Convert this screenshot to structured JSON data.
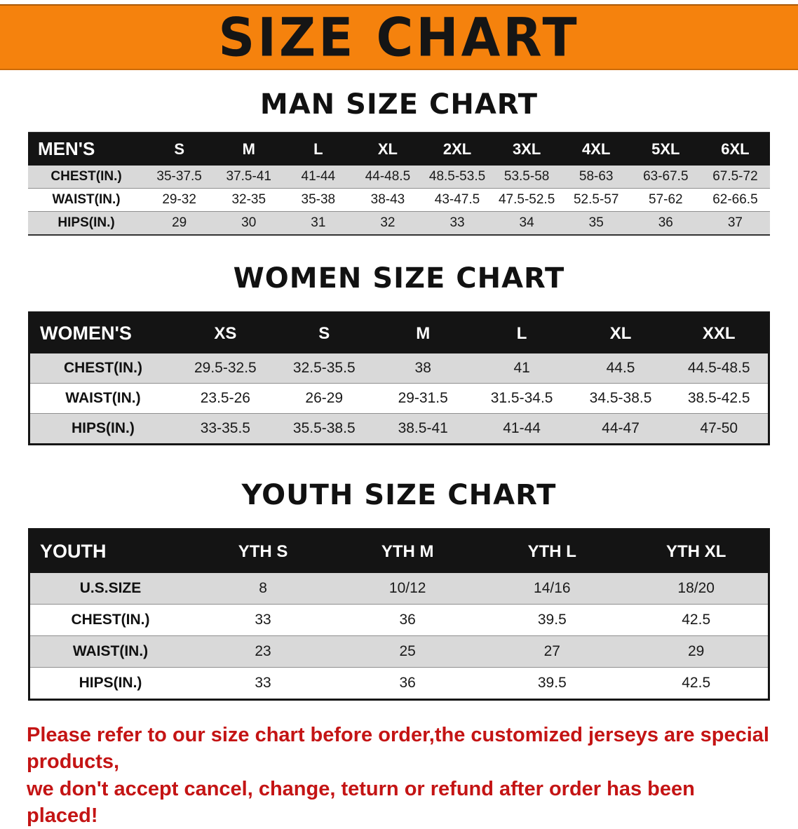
{
  "banner": {
    "title": "SIZE CHART"
  },
  "colors": {
    "banner_orange": "#F5820D",
    "table_header_black": "#141414",
    "row_stripe_gray": "#D9D9D9",
    "disclaimer_red": "#C41414"
  },
  "sections": [
    {
      "heading": "MAN SIZE CHART",
      "table": {
        "header": [
          "MEN'S",
          "S",
          "M",
          "L",
          "XL",
          "2XL",
          "3XL",
          "4XL",
          "5XL",
          "6XL"
        ],
        "rows": [
          [
            "CHEST(IN.)",
            "35-37.5",
            "37.5-41",
            "41-44",
            "44-48.5",
            "48.5-53.5",
            "53.5-58",
            "58-63",
            "63-67.5",
            "67.5-72"
          ],
          [
            "WAIST(IN.)",
            "29-32",
            "32-35",
            "35-38",
            "38-43",
            "43-47.5",
            "47.5-52.5",
            "52.5-57",
            "57-62",
            "62-66.5"
          ],
          [
            "HIPS(IN.)",
            "29",
            "30",
            "31",
            "32",
            "33",
            "34",
            "35",
            "36",
            "37"
          ]
        ]
      }
    },
    {
      "heading": "WOMEN SIZE CHART",
      "table": {
        "header": [
          "WOMEN'S",
          "XS",
          "S",
          "M",
          "L",
          "XL",
          "XXL"
        ],
        "rows": [
          [
            "CHEST(IN.)",
            "29.5-32.5",
            "32.5-35.5",
            "38",
            "41",
            "44.5",
            "44.5-48.5"
          ],
          [
            "WAIST(IN.)",
            "23.5-26",
            "26-29",
            "29-31.5",
            "31.5-34.5",
            "34.5-38.5",
            "38.5-42.5"
          ],
          [
            "HIPS(IN.)",
            "33-35.5",
            "35.5-38.5",
            "38.5-41",
            "41-44",
            "44-47",
            "47-50"
          ]
        ]
      }
    },
    {
      "heading": "YOUTH SIZE CHART",
      "table": {
        "header": [
          "YOUTH",
          "YTH S",
          "YTH M",
          "YTH L",
          "YTH XL"
        ],
        "rows": [
          [
            "U.S.SIZE",
            "8",
            "10/12",
            "14/16",
            "18/20"
          ],
          [
            "CHEST(IN.)",
            "33",
            "36",
            "39.5",
            "42.5"
          ],
          [
            "WAIST(IN.)",
            "23",
            "25",
            "27",
            "29"
          ],
          [
            "HIPS(IN.)",
            "33",
            "36",
            "39.5",
            "42.5"
          ]
        ]
      }
    }
  ],
  "disclaimer": {
    "line1": "Please refer to our size chart before order,the customized jerseys are special products,",
    "line2": "we don't accept cancel, change, teturn or refund after order has been placed!"
  }
}
